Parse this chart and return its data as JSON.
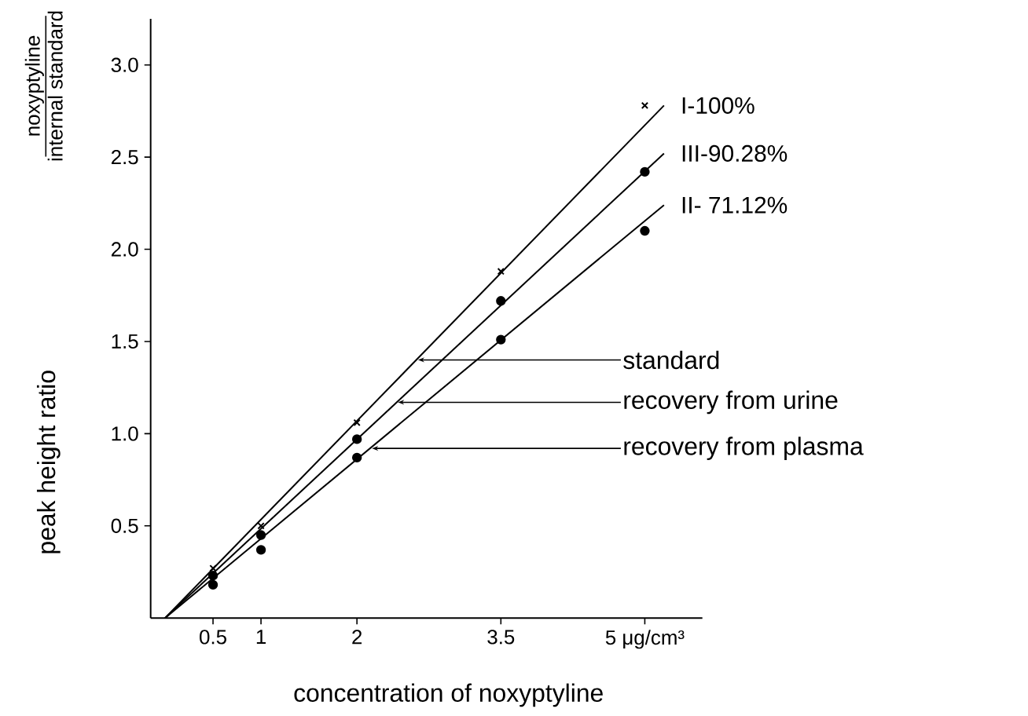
{
  "chart_data": {
    "type": "scatter",
    "xlabel": "concentration of noxyptyline",
    "ylabel": "peak height ratio",
    "xlim": [
      -0.15,
      5.6
    ],
    "ylim": [
      0,
      3.25
    ],
    "xticks": [
      0.5,
      1,
      2,
      3.5,
      {
        "value": 5,
        "label": "5 μg/cm³"
      }
    ],
    "yticks": [
      0.5,
      {
        "value": 1,
        "label": "1.0"
      },
      1.5,
      {
        "value": 2,
        "label": "2.0"
      },
      2.5,
      {
        "value": 3,
        "label": "3.0"
      }
    ],
    "series": [
      {
        "marker": "cross",
        "color": "#000000",
        "x": [
          0.5,
          1,
          2,
          3.5,
          5
        ],
        "values": [
          0.27,
          0.5,
          1.06,
          1.88,
          2.78
        ]
      },
      {
        "marker": "circle",
        "color": "#000000",
        "x": [
          0.5,
          1,
          2,
          3.5,
          5
        ],
        "values": [
          0.23,
          0.45,
          0.97,
          1.72,
          2.42
        ]
      },
      {
        "marker": "circle",
        "color": "#000000",
        "x": [
          0.5,
          1,
          2,
          3.5,
          5
        ],
        "values": [
          0.18,
          0.37,
          0.87,
          1.51,
          2.1
        ]
      },
      {
        "type": "line",
        "marker": "none",
        "color": "#000000",
        "x": [
          0,
          5.2
        ],
        "values": [
          0,
          2.78
        ]
      },
      {
        "type": "line",
        "marker": "none",
        "color": "#000000",
        "x": [
          0,
          5.2
        ],
        "values": [
          0,
          2.52
        ]
      },
      {
        "type": "line",
        "marker": "none",
        "color": "#000000",
        "x": [
          0,
          5.2
        ],
        "values": [
          0,
          2.24
        ]
      }
    ],
    "annotations": [
      "noxyptyline",
      "internal standard",
      {
        "text": "I-100%",
        "x": 5.2,
        "y": 2.78
      },
      {
        "text": "III-90.28%",
        "x": 5.2,
        "y": 2.52
      },
      {
        "text": "II- 71.12%",
        "x": 5.2,
        "y": 2.24
      },
      {
        "text": "standard",
        "x": 2.62,
        "y": 1.4
      },
      {
        "text": "recovery from urine",
        "x": 2.41,
        "y": 1.17
      },
      {
        "text": "recovery from plasma",
        "x": 2.14,
        "y": 0.92
      }
    ],
    "grid": false
  }
}
